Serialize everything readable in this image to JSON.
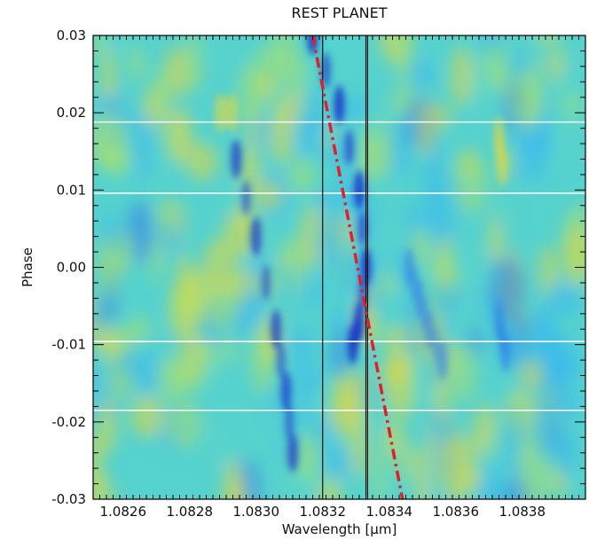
{
  "chart_data": {
    "type": "heatmap",
    "title": "REST PLANET",
    "xlabel": "Wavelength [μm]",
    "ylabel": "Phase",
    "xlim": [
      1.08251,
      1.08399
    ],
    "ylim": [
      -0.03,
      0.03
    ],
    "x_ticks": [
      {
        "value": 1.0826,
        "label": "1.0826"
      },
      {
        "value": 1.0828,
        "label": "1.0828"
      },
      {
        "value": 1.083,
        "label": "1.0830"
      },
      {
        "value": 1.0832,
        "label": "1.0832"
      },
      {
        "value": 1.0834,
        "label": "1.0834"
      },
      {
        "value": 1.0836,
        "label": "1.0836"
      },
      {
        "value": 1.0838,
        "label": "1.0838"
      }
    ],
    "y_ticks": [
      {
        "value": 0.03,
        "label": "0.03"
      },
      {
        "value": 0.02,
        "label": "0.02"
      },
      {
        "value": 0.01,
        "label": "0.01"
      },
      {
        "value": 0.0,
        "label": "0.00"
      },
      {
        "value": -0.01,
        "label": "-0.01"
      },
      {
        "value": -0.02,
        "label": "-0.02"
      },
      {
        "value": -0.03,
        "label": "-0.03"
      }
    ],
    "colormap": [
      "#e8d83a",
      "#a8e070",
      "#5ad6c8",
      "#38b8f0",
      "#2e7ee8",
      "#1a3ac8"
    ],
    "background_color": "#56d2cf",
    "features": [
      {
        "name": "absorption-trail-main",
        "points": [
          [
            1.08317,
            0.03
          ],
          [
            1.08325,
            0.021
          ],
          [
            1.08331,
            0.01
          ],
          [
            1.08333,
            0.0
          ],
          [
            1.08331,
            -0.007
          ],
          [
            1.08329,
            -0.01
          ]
        ],
        "strength": 0.9
      },
      {
        "name": "absorption-trail-left",
        "points": [
          [
            1.08294,
            0.014
          ],
          [
            1.083,
            0.004
          ],
          [
            1.08306,
            -0.008
          ],
          [
            1.08309,
            -0.016
          ],
          [
            1.08311,
            -0.024
          ]
        ],
        "strength": 0.75
      },
      {
        "name": "absorption-blob-right",
        "points": [
          [
            1.08346,
            0.0
          ],
          [
            1.08349,
            -0.004
          ],
          [
            1.08352,
            -0.008
          ],
          [
            1.08356,
            -0.012
          ]
        ],
        "strength": 0.55
      },
      {
        "name": "absorption-blob-far-right",
        "points": [
          [
            1.08373,
            -0.007
          ],
          [
            1.08375,
            -0.011
          ]
        ],
        "strength": 0.6
      },
      {
        "name": "emission-patch-right",
        "points": [
          [
            1.08373,
            0.017
          ],
          [
            1.08374,
            0.013
          ]
        ],
        "strength": -0.6
      },
      {
        "name": "emission-patch-top",
        "points": [
          [
            1.08289,
            0.02
          ],
          [
            1.08293,
            0.02
          ]
        ],
        "strength": -0.55
      }
    ],
    "vertical_lines": [
      {
        "name": "line-1",
        "x": 1.0832,
        "color": "#000000"
      },
      {
        "name": "line-2",
        "x": 1.08333,
        "color": "#000000"
      },
      {
        "name": "line-3",
        "x": 1.083335,
        "color": "#000000"
      }
    ],
    "horizontal_lines": [
      {
        "name": "hline-1",
        "y": 0.0188,
        "color": "#ffffff"
      },
      {
        "name": "hline-2",
        "y": 0.0096,
        "color": "#ffffff"
      },
      {
        "name": "hline-3",
        "y": -0.0096,
        "color": "#ffffff"
      },
      {
        "name": "hline-4",
        "y": -0.0185,
        "color": "#ffffff"
      }
    ],
    "trajectory": {
      "name": "planet-trail",
      "color": "#e0202a",
      "style": "dash-dot",
      "points": [
        [
          1.08317,
          0.03
        ],
        [
          1.08344,
          -0.03
        ]
      ]
    }
  }
}
